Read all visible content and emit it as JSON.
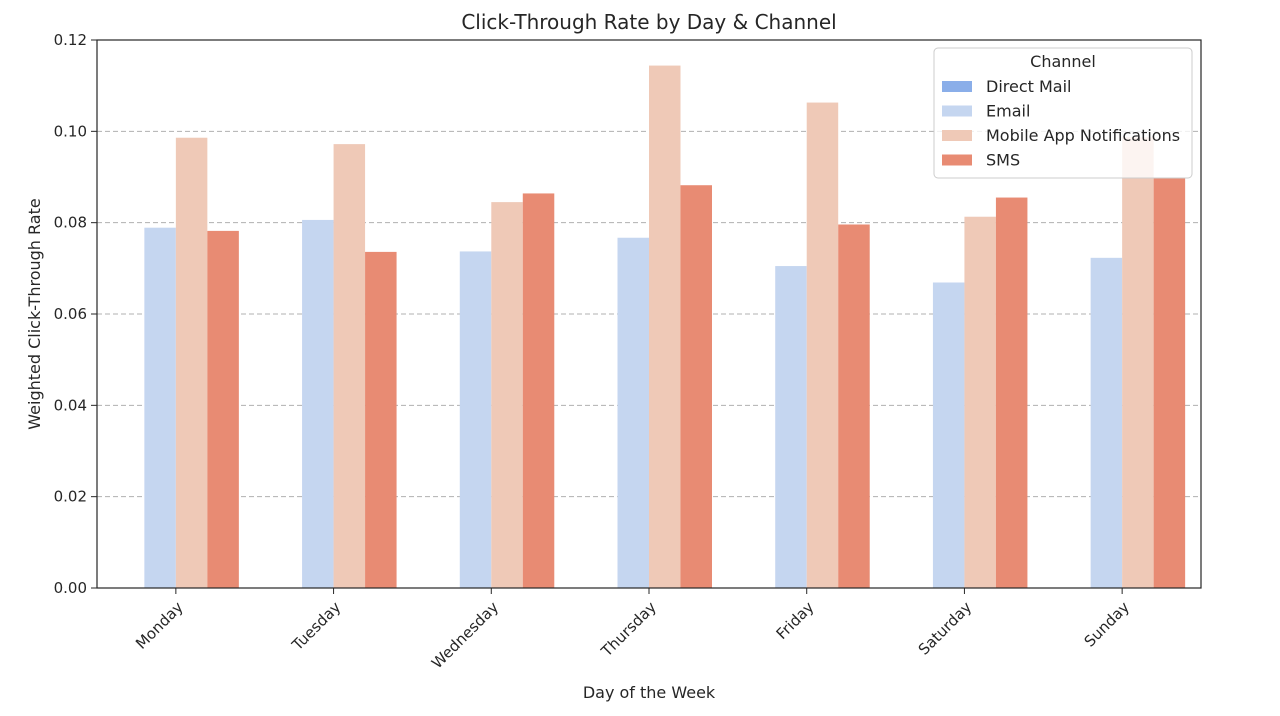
{
  "chart_data": {
    "type": "bar",
    "title": "Click-Through Rate by Day & Channel",
    "xlabel": "Day of the Week",
    "ylabel": "Weighted Click-Through Rate",
    "ylim": [
      0,
      0.12
    ],
    "yticks": [
      "0.00",
      "0.02",
      "0.04",
      "0.06",
      "0.08",
      "0.10",
      "0.12"
    ],
    "grid": "horizontal-dashed",
    "legend": {
      "title": "Channel",
      "position": "top-right"
    },
    "categories": [
      "Monday",
      "Tuesday",
      "Wednesday",
      "Thursday",
      "Friday",
      "Saturday",
      "Sunday"
    ],
    "series": [
      {
        "name": "Direct Mail",
        "color": "#8aaee9",
        "values": [
          null,
          null,
          null,
          null,
          null,
          null,
          null
        ]
      },
      {
        "name": "Email",
        "color": "#c5d6f0",
        "values": [
          0.0789,
          0.0806,
          0.0737,
          0.0767,
          0.0705,
          0.0669,
          0.0723
        ]
      },
      {
        "name": "Mobile App Notifications",
        "color": "#efc9b7",
        "values": [
          0.0986,
          0.0972,
          0.0845,
          0.1144,
          0.1063,
          0.0813,
          0.0987
        ]
      },
      {
        "name": "SMS",
        "color": "#e88b73",
        "values": [
          0.0782,
          0.0736,
          0.0864,
          0.0882,
          0.0796,
          0.0855,
          0.0898
        ]
      }
    ]
  }
}
